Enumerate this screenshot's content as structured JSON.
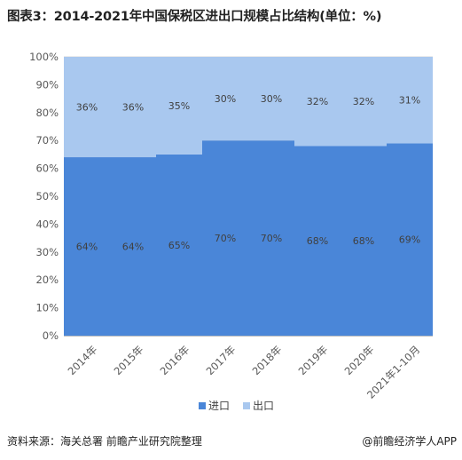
{
  "title": "图表3：2014-2021年中国保税区进出口规模占比结构(单位：%)",
  "source": "资料来源：海关总署 前瞻产业研究院整理",
  "credit": "@前瞻经济学人APP",
  "colors": {
    "import": "#4a86d8",
    "export": "#a9c8ef",
    "grid": "#d9d9d9",
    "axis": "#7f7f7f",
    "text": "#595959"
  },
  "chart_data": {
    "type": "bar",
    "stacked": true,
    "categories": [
      "2014年",
      "2015年",
      "2016年",
      "2017年",
      "2018年",
      "2019年",
      "2020年",
      "2021年1-10月"
    ],
    "series": [
      {
        "name": "进口",
        "values": [
          64,
          64,
          65,
          70,
          70,
          68,
          68,
          69
        ],
        "labels": [
          "64%",
          "64%",
          "65%",
          "70%",
          "70%",
          "68%",
          "68%",
          "69%"
        ]
      },
      {
        "name": "出口",
        "values": [
          36,
          36,
          35,
          30,
          30,
          32,
          32,
          31
        ],
        "labels": [
          "36%",
          "36%",
          "35%",
          "30%",
          "30%",
          "32%",
          "32%",
          "31%"
        ]
      }
    ],
    "ylim": [
      0,
      100
    ],
    "yticks": [
      "0%",
      "10%",
      "20%",
      "30%",
      "40%",
      "50%",
      "60%",
      "70%",
      "80%",
      "90%",
      "100%"
    ],
    "grid": true,
    "legend_position": "bottom"
  }
}
